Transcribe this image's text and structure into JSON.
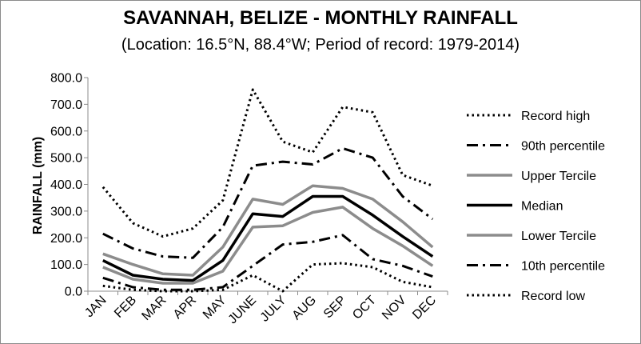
{
  "chart_data": {
    "type": "line",
    "title": "SAVANNAH, BELIZE - MONTHLY RAINFALL",
    "subtitle": "(Location: 16.5°N, 88.4°W; Period of record: 1979-2014)",
    "xlabel": "",
    "ylabel": "RAINFALL (mm)",
    "ylim": [
      0,
      800
    ],
    "ytick_labels": [
      "0.0",
      "100.0",
      "200.0",
      "300.0",
      "400.0",
      "500.0",
      "600.0",
      "700.0",
      "800.0"
    ],
    "categories": [
      "JAN",
      "FEB",
      "MAR",
      "APR",
      "MAY",
      "JUNE",
      "JULY",
      "AUG",
      "SEP",
      "OCT",
      "NOV",
      "DEC"
    ],
    "grid": false,
    "legend_position": "right",
    "series": [
      {
        "name": "Record high",
        "style": "dotted",
        "color": "#000000",
        "values": [
          390,
          255,
          205,
          235,
          340,
          755,
          560,
          520,
          690,
          670,
          435,
          395
        ]
      },
      {
        "name": "90th percentile",
        "style": "dash-dot",
        "color": "#000000",
        "values": [
          215,
          160,
          130,
          125,
          240,
          470,
          485,
          475,
          535,
          500,
          355,
          270
        ]
      },
      {
        "name": "Upper Tercile",
        "style": "solid-gray",
        "color": "#8c8c8c",
        "values": [
          140,
          100,
          65,
          60,
          165,
          345,
          325,
          395,
          385,
          345,
          260,
          165
        ]
      },
      {
        "name": "Median",
        "style": "solid-black",
        "color": "#000000",
        "values": [
          115,
          60,
          45,
          40,
          115,
          290,
          280,
          355,
          355,
          285,
          205,
          130
        ]
      },
      {
        "name": "Lower Tercile",
        "style": "solid-gray",
        "color": "#8c8c8c",
        "values": [
          90,
          45,
          30,
          30,
          75,
          240,
          245,
          295,
          315,
          235,
          170,
          95
        ]
      },
      {
        "name": "10th percentile",
        "style": "dash-dot",
        "color": "#000000",
        "values": [
          50,
          15,
          5,
          5,
          15,
          95,
          175,
          185,
          210,
          120,
          95,
          55
        ]
      },
      {
        "name": "Record low",
        "style": "dotted",
        "color": "#000000",
        "values": [
          20,
          5,
          0,
          0,
          5,
          60,
          0,
          100,
          105,
          90,
          35,
          15
        ]
      }
    ]
  }
}
